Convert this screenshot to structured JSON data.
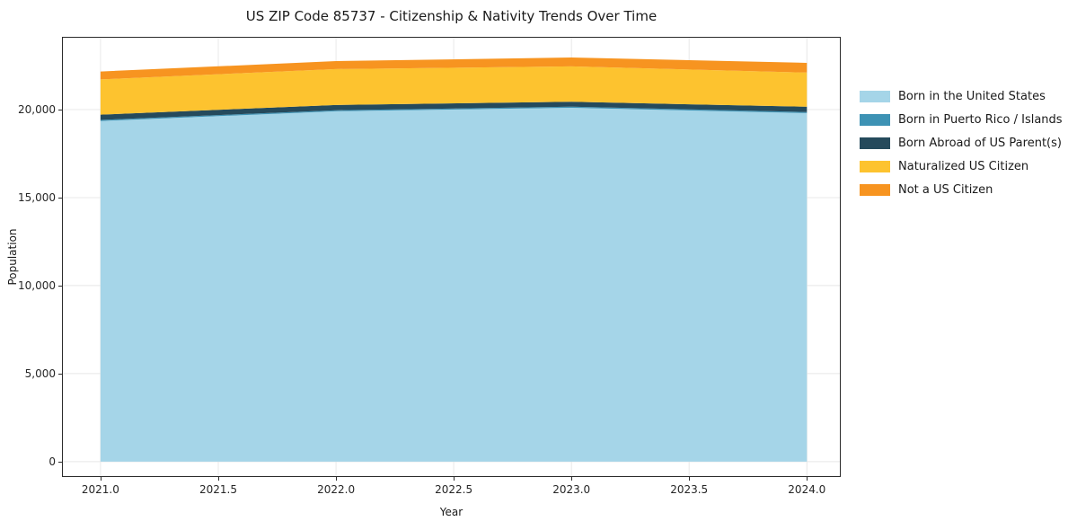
{
  "chart_data": {
    "type": "area",
    "stacked": true,
    "title": "US ZIP Code 85737 - Citizenship & Nativity Trends Over Time",
    "xlabel": "Year",
    "ylabel": "Population",
    "x": [
      2021,
      2022,
      2023,
      2024
    ],
    "series": [
      {
        "name": "Born in the United States",
        "color": "#a5d5e8",
        "values": [
          19350,
          19900,
          20100,
          19800
        ]
      },
      {
        "name": "Born in Puerto Rico / Islands",
        "color": "#3d92b4",
        "values": [
          60,
          60,
          60,
          60
        ]
      },
      {
        "name": "Born Abroad of US Parent(s)",
        "color": "#254a5c",
        "values": [
          300,
          300,
          280,
          300
        ]
      },
      {
        "name": "Naturalized US Citizen",
        "color": "#fdc32f",
        "values": [
          2000,
          2040,
          2010,
          1940
        ]
      },
      {
        "name": "Not a US Citizen",
        "color": "#f79420",
        "values": [
          450,
          455,
          510,
          550
        ]
      }
    ],
    "xlim": [
      2020.84,
      2024.14
    ],
    "ylim": [
      -820,
      24080
    ],
    "x_ticks": [
      {
        "value": 2021.0,
        "label": "2021.0"
      },
      {
        "value": 2021.5,
        "label": "2021.5"
      },
      {
        "value": 2022.0,
        "label": "2022.0"
      },
      {
        "value": 2022.5,
        "label": "2022.5"
      },
      {
        "value": 2023.0,
        "label": "2023.0"
      },
      {
        "value": 2023.5,
        "label": "2023.5"
      },
      {
        "value": 2024.0,
        "label": "2024.0"
      }
    ],
    "y_ticks": [
      {
        "value": 0,
        "label": "0"
      },
      {
        "value": 5000,
        "label": "5,000"
      },
      {
        "value": 10000,
        "label": "10,000"
      },
      {
        "value": 15000,
        "label": "15,000"
      },
      {
        "value": 20000,
        "label": "20,000"
      }
    ],
    "grid": true,
    "grid_color": "#e8e8e8",
    "legend_position": "right"
  }
}
